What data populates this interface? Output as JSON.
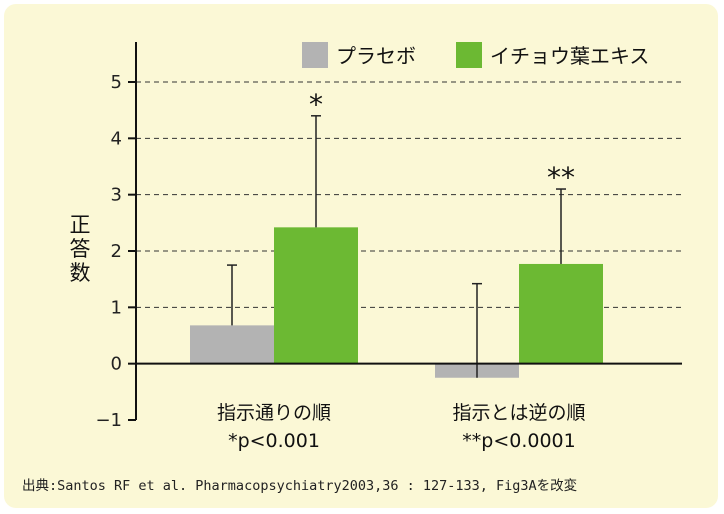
{
  "chart_data": {
    "type": "bar",
    "ylabel": "正答数",
    "ylim": [
      -1,
      5
    ],
    "yticks": [
      "-1",
      "0",
      "1",
      "2",
      "3",
      "4",
      "5"
    ],
    "grid": "dashed horizontal at positive integer ticks",
    "legend_position": "top-right",
    "categories": [
      "指示通りの順",
      "指示とは逆の順"
    ],
    "p_values": [
      "*p<0.001",
      "**p<0.0001"
    ],
    "significance": [
      "*",
      "**"
    ],
    "series": [
      {
        "name": "プラセボ",
        "color": "#b3b3b3",
        "values": [
          0.68,
          -0.25
        ],
        "error_upper": [
          1.75,
          1.42
        ]
      },
      {
        "name": "イチョウ葉エキス",
        "color": "#6cb933",
        "values": [
          2.42,
          1.77
        ],
        "error_upper": [
          4.4,
          3.1
        ]
      }
    ]
  },
  "source": "出典:Santos RF et al. Pharmacopsychiatry2003,36 : 127-133, Fig3Aを改変"
}
